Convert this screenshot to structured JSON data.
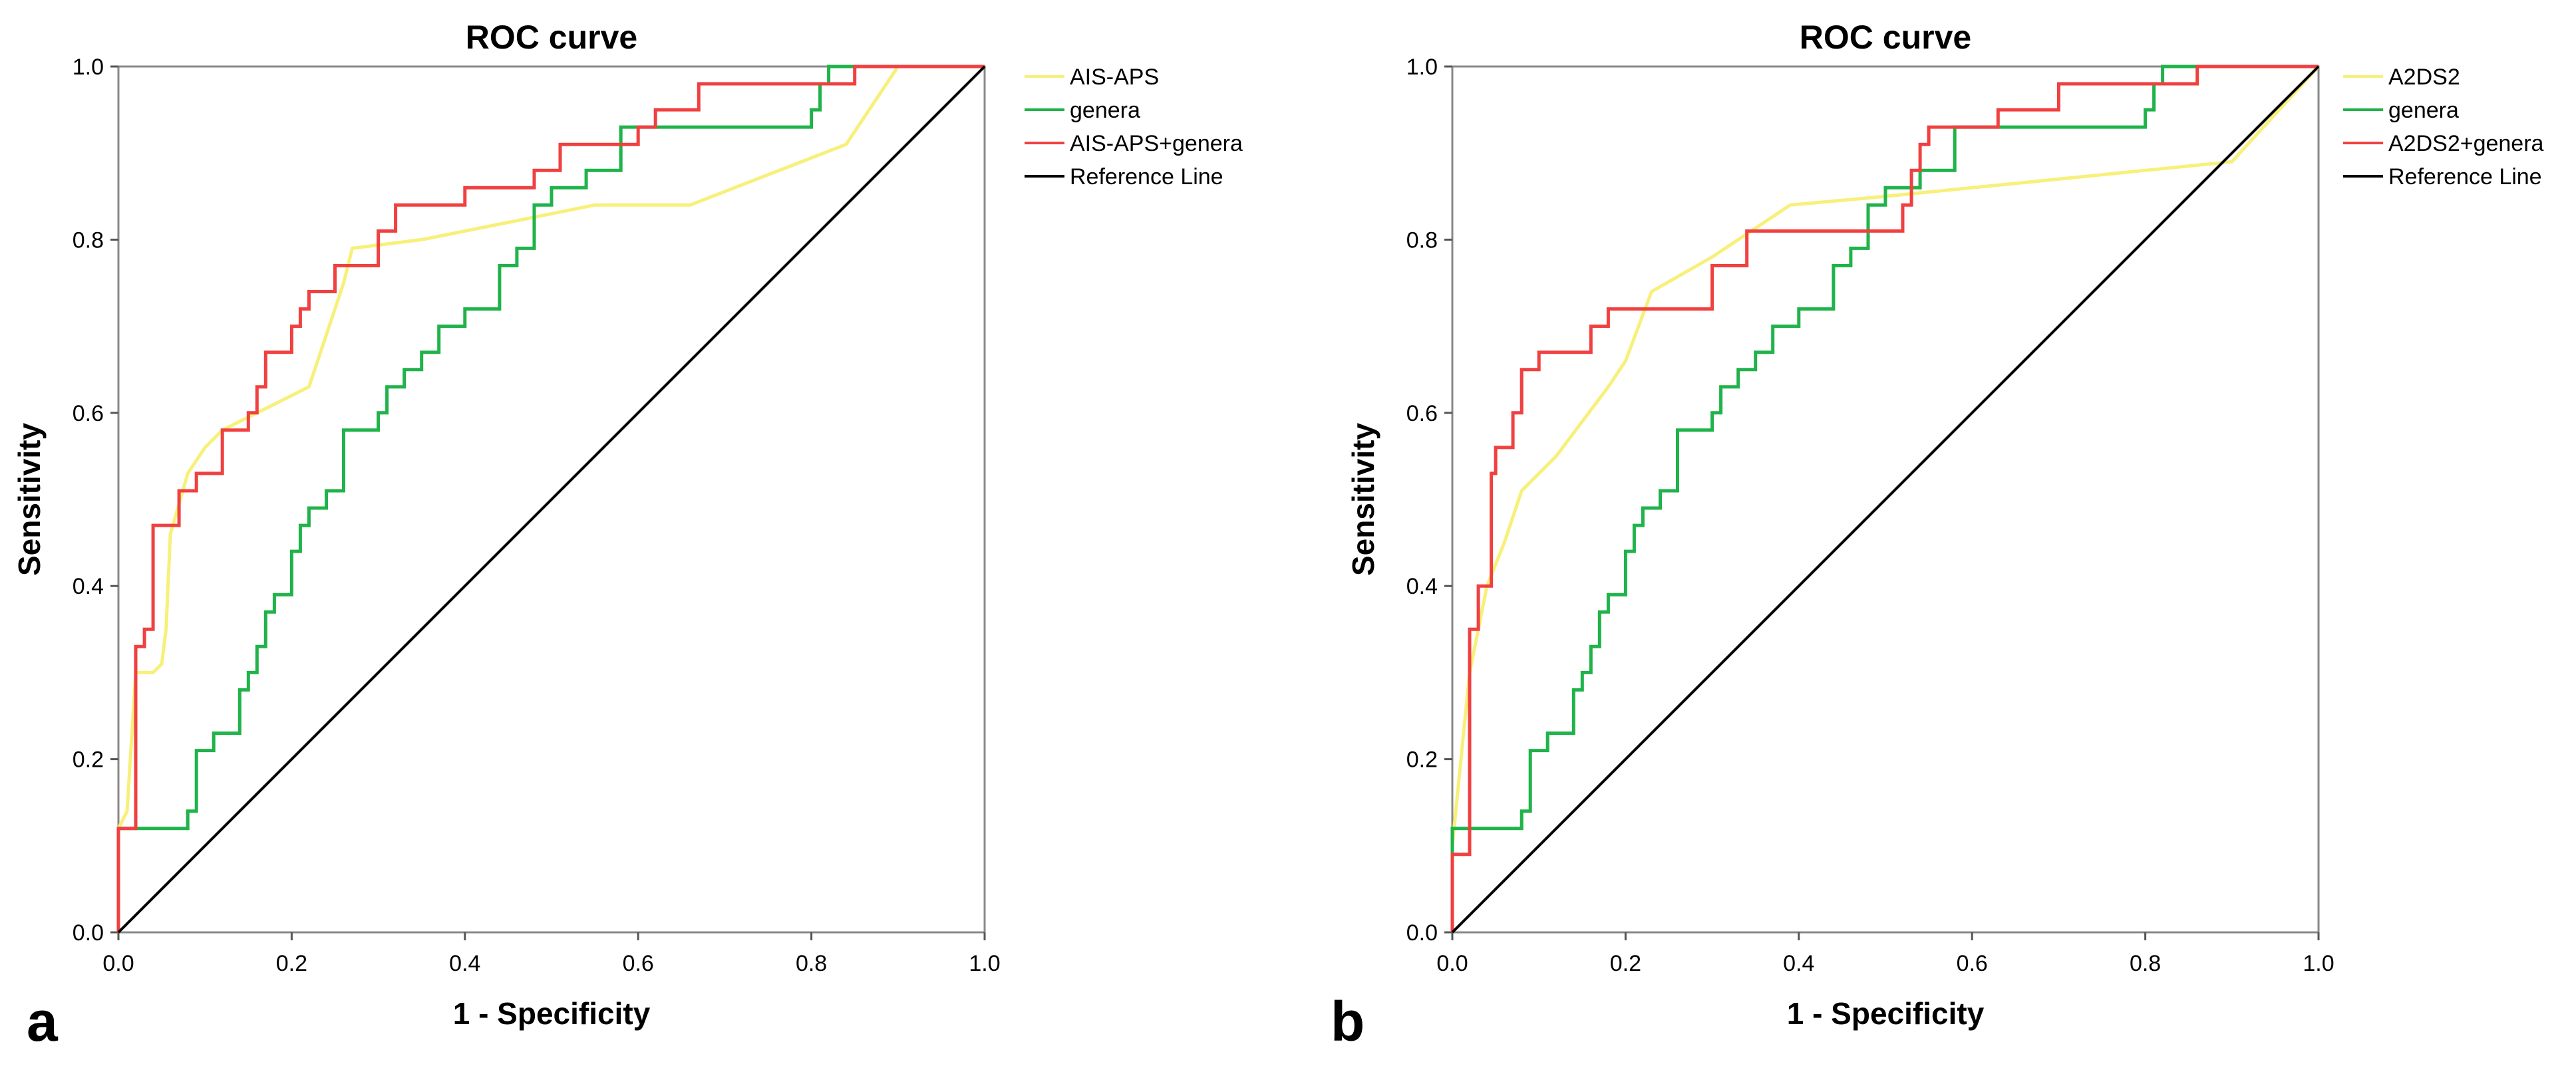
{
  "chart_data": [
    {
      "type": "line",
      "panel_label": "a",
      "title": "ROC curve",
      "xlabel": "1 - Specificity",
      "ylabel": "Sensitivity",
      "xlim": [
        0,
        1
      ],
      "ylim": [
        0,
        1
      ],
      "x_ticks": [
        "0.0",
        "0.2",
        "0.4",
        "0.6",
        "0.8",
        "1.0"
      ],
      "y_ticks": [
        "0.0",
        "0.2",
        "0.4",
        "0.6",
        "0.8",
        "1.0"
      ],
      "legend_position": "right",
      "series": [
        {
          "name": "AIS-APS",
          "color": "#f7f07a",
          "step": false,
          "x": [
            0,
            0,
            0.01,
            0.02,
            0.03,
            0.04,
            0.05,
            0.055,
            0.06,
            0.08,
            0.1,
            0.12,
            0.14,
            0.2,
            0.22,
            0.26,
            0.27,
            0.35,
            0.45,
            0.55,
            0.66,
            0.84,
            0.88,
            0.9,
            1.0
          ],
          "y": [
            0,
            0.12,
            0.14,
            0.3,
            0.3,
            0.3,
            0.31,
            0.35,
            0.46,
            0.53,
            0.56,
            0.58,
            0.59,
            0.62,
            0.63,
            0.75,
            0.79,
            0.8,
            0.82,
            0.84,
            0.84,
            0.91,
            0.97,
            1.0,
            1.0
          ]
        },
        {
          "name": "genera",
          "color": "#1fb34a",
          "step": true,
          "x": [
            0,
            0,
            0.01,
            0.02,
            0.08,
            0.09,
            0.1,
            0.11,
            0.12,
            0.14,
            0.15,
            0.16,
            0.17,
            0.18,
            0.2,
            0.21,
            0.22,
            0.23,
            0.24,
            0.26,
            0.27,
            0.3,
            0.31,
            0.33,
            0.35,
            0.37,
            0.39,
            0.4,
            0.42,
            0.44,
            0.46,
            0.48,
            0.49,
            0.5,
            0.52,
            0.54,
            0.56,
            0.58,
            0.62,
            0.66,
            0.7,
            0.8,
            0.81,
            0.82,
            0.85,
            0.9,
            1.0
          ],
          "y": [
            0,
            0.09,
            0.12,
            0.12,
            0.12,
            0.14,
            0.21,
            0.21,
            0.23,
            0.23,
            0.28,
            0.3,
            0.33,
            0.37,
            0.39,
            0.44,
            0.47,
            0.49,
            0.49,
            0.51,
            0.58,
            0.58,
            0.6,
            0.63,
            0.65,
            0.67,
            0.7,
            0.7,
            0.72,
            0.72,
            0.77,
            0.79,
            0.84,
            0.84,
            0.86,
            0.86,
            0.88,
            0.88,
            0.93,
            0.93,
            0.93,
            0.93,
            0.95,
            0.98,
            1.0,
            1.0,
            1.0
          ]
        },
        {
          "name": "AIS-APS+genera",
          "color": "#f04040",
          "step": true,
          "x": [
            0,
            0,
            0.02,
            0.02,
            0.03,
            0.04,
            0.055,
            0.07,
            0.08,
            0.09,
            0.1,
            0.12,
            0.13,
            0.15,
            0.16,
            0.17,
            0.18,
            0.2,
            0.21,
            0.22,
            0.23,
            0.24,
            0.25,
            0.27,
            0.3,
            0.32,
            0.35,
            0.38,
            0.4,
            0.43,
            0.45,
            0.48,
            0.51,
            0.53,
            0.55,
            0.6,
            0.62,
            0.65,
            0.67,
            0.7,
            0.75,
            0.8,
            0.85,
            0.89,
            1.0
          ],
          "y": [
            0,
            0.12,
            0.12,
            0.33,
            0.33,
            0.35,
            0.47,
            0.47,
            0.51,
            0.51,
            0.53,
            0.53,
            0.58,
            0.58,
            0.6,
            0.63,
            0.67,
            0.67,
            0.7,
            0.72,
            0.74,
            0.74,
            0.74,
            0.77,
            0.77,
            0.81,
            0.84,
            0.84,
            0.84,
            0.86,
            0.86,
            0.86,
            0.88,
            0.91,
            0.91,
            0.91,
            0.93,
            0.95,
            0.95,
            0.98,
            0.98,
            0.98,
            0.98,
            1.0,
            1.0
          ]
        },
        {
          "name": "Reference Line",
          "color": "#000000",
          "step": false,
          "x": [
            0,
            1
          ],
          "y": [
            0,
            1
          ]
        }
      ]
    },
    {
      "type": "line",
      "panel_label": "b",
      "title": "ROC curve",
      "xlabel": "1 - Specificity",
      "ylabel": "Sensitivity",
      "xlim": [
        0,
        1
      ],
      "ylim": [
        0,
        1
      ],
      "x_ticks": [
        "0.0",
        "0.2",
        "0.4",
        "0.6",
        "0.8",
        "1.0"
      ],
      "y_ticks": [
        "0.0",
        "0.2",
        "0.4",
        "0.6",
        "0.8",
        "1.0"
      ],
      "legend_position": "right",
      "series": [
        {
          "name": "A2DS2",
          "color": "#f7f07a",
          "step": false,
          "x": [
            0,
            0,
            0.02,
            0.04,
            0.06,
            0.08,
            0.12,
            0.18,
            0.2,
            0.23,
            0.3,
            0.36,
            0.39,
            0.5,
            0.6,
            0.7,
            0.8,
            0.9,
            1.0
          ],
          "y": [
            0,
            0.1,
            0.3,
            0.4,
            0.45,
            0.51,
            0.55,
            0.63,
            0.66,
            0.74,
            0.78,
            0.82,
            0.84,
            0.85,
            0.86,
            0.87,
            0.88,
            0.89,
            1.0
          ]
        },
        {
          "name": "genera",
          "color": "#1fb34a",
          "step": true,
          "x": [
            0,
            0,
            0.01,
            0.02,
            0.08,
            0.09,
            0.1,
            0.11,
            0.12,
            0.14,
            0.15,
            0.16,
            0.17,
            0.18,
            0.2,
            0.21,
            0.22,
            0.23,
            0.24,
            0.26,
            0.27,
            0.3,
            0.31,
            0.33,
            0.35,
            0.37,
            0.39,
            0.4,
            0.42,
            0.44,
            0.46,
            0.48,
            0.49,
            0.5,
            0.52,
            0.54,
            0.56,
            0.58,
            0.62,
            0.66,
            0.7,
            0.8,
            0.81,
            0.82,
            0.85,
            0.9,
            1.0
          ],
          "y": [
            0,
            0.09,
            0.12,
            0.12,
            0.12,
            0.14,
            0.21,
            0.21,
            0.23,
            0.23,
            0.28,
            0.3,
            0.33,
            0.37,
            0.39,
            0.44,
            0.47,
            0.49,
            0.49,
            0.51,
            0.58,
            0.58,
            0.6,
            0.63,
            0.65,
            0.67,
            0.7,
            0.7,
            0.72,
            0.72,
            0.77,
            0.79,
            0.84,
            0.84,
            0.86,
            0.86,
            0.88,
            0.88,
            0.93,
            0.93,
            0.93,
            0.93,
            0.95,
            0.98,
            1.0,
            1.0,
            1.0
          ]
        },
        {
          "name": "A2DS2+genera",
          "color": "#f04040",
          "step": true,
          "x": [
            0,
            0,
            0.02,
            0.02,
            0.03,
            0.03,
            0.045,
            0.045,
            0.05,
            0.06,
            0.07,
            0.08,
            0.09,
            0.1,
            0.11,
            0.13,
            0.15,
            0.16,
            0.17,
            0.18,
            0.2,
            0.22,
            0.26,
            0.3,
            0.34,
            0.35,
            0.4,
            0.44,
            0.48,
            0.52,
            0.53,
            0.54,
            0.55,
            0.56,
            0.6,
            0.63,
            0.67,
            0.7,
            0.73,
            0.8,
            0.86,
            0.9,
            1.0
          ],
          "y": [
            0,
            0.09,
            0.09,
            0.35,
            0.35,
            0.4,
            0.4,
            0.47,
            0.53,
            0.56,
            0.56,
            0.6,
            0.65,
            0.65,
            0.67,
            0.67,
            0.67,
            0.67,
            0.7,
            0.7,
            0.72,
            0.72,
            0.72,
            0.72,
            0.77,
            0.81,
            0.81,
            0.81,
            0.81,
            0.81,
            0.84,
            0.88,
            0.91,
            0.93,
            0.93,
            0.93,
            0.95,
            0.95,
            0.98,
            0.98,
            0.98,
            1.0,
            1.0
          ]
        },
        {
          "name": "Reference Line",
          "color": "#000000",
          "step": false,
          "x": [
            0,
            1
          ],
          "y": [
            0,
            1
          ]
        }
      ]
    }
  ]
}
